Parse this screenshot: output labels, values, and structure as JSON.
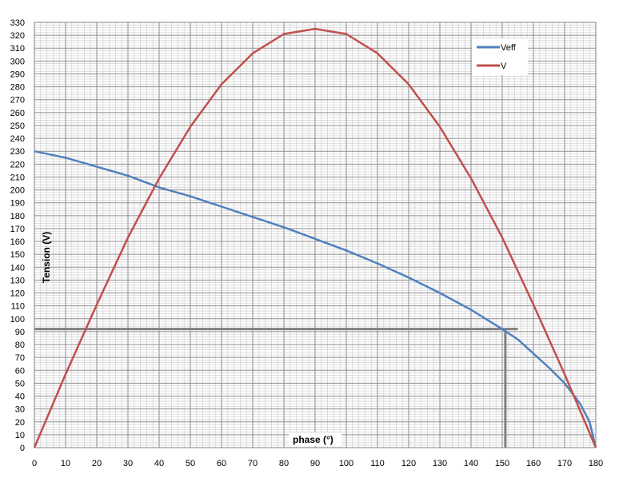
{
  "chart_data": {
    "type": "line",
    "xlabel": "phase (°)",
    "ylabel": "Tension (V)",
    "xlim": [
      0,
      180
    ],
    "ylim": [
      0,
      330
    ],
    "x_ticks": [
      0,
      10,
      20,
      30,
      40,
      50,
      60,
      70,
      80,
      90,
      100,
      110,
      120,
      130,
      140,
      150,
      160,
      170,
      180
    ],
    "y_ticks": [
      0,
      10,
      20,
      30,
      40,
      50,
      60,
      70,
      80,
      90,
      100,
      110,
      120,
      130,
      140,
      150,
      160,
      170,
      180,
      190,
      200,
      210,
      220,
      230,
      240,
      250,
      260,
      270,
      280,
      290,
      300,
      310,
      320,
      330
    ],
    "grid": true,
    "legend_position": "top-right",
    "series": [
      {
        "name": "Veff",
        "color": "#4f81bd",
        "x": [
          0,
          10,
          20,
          30,
          40,
          50,
          60,
          70,
          80,
          90,
          100,
          110,
          120,
          130,
          140,
          150,
          155,
          160,
          165,
          170,
          175,
          178,
          180
        ],
        "y": [
          230,
          225,
          218,
          211,
          202,
          195,
          187,
          179,
          171,
          162,
          153,
          143,
          132,
          120,
          107,
          92,
          84,
          73,
          62,
          50,
          34,
          20,
          0
        ]
      },
      {
        "name": "V",
        "color": "#c0504d",
        "x": [
          0,
          10,
          20,
          30,
          40,
          50,
          60,
          70,
          80,
          90,
          100,
          110,
          120,
          130,
          140,
          150,
          160,
          170,
          180
        ],
        "y": [
          0,
          57,
          111,
          163,
          209,
          249,
          282,
          306,
          321,
          325,
          321,
          306,
          282,
          249,
          209,
          163,
          111,
          57,
          0
        ]
      }
    ],
    "reference_lines": {
      "color": "#808080",
      "horizontal_y": 92,
      "horizontal_x_end": 155,
      "vertical_x": 151,
      "vertical_y_end": 92
    }
  }
}
